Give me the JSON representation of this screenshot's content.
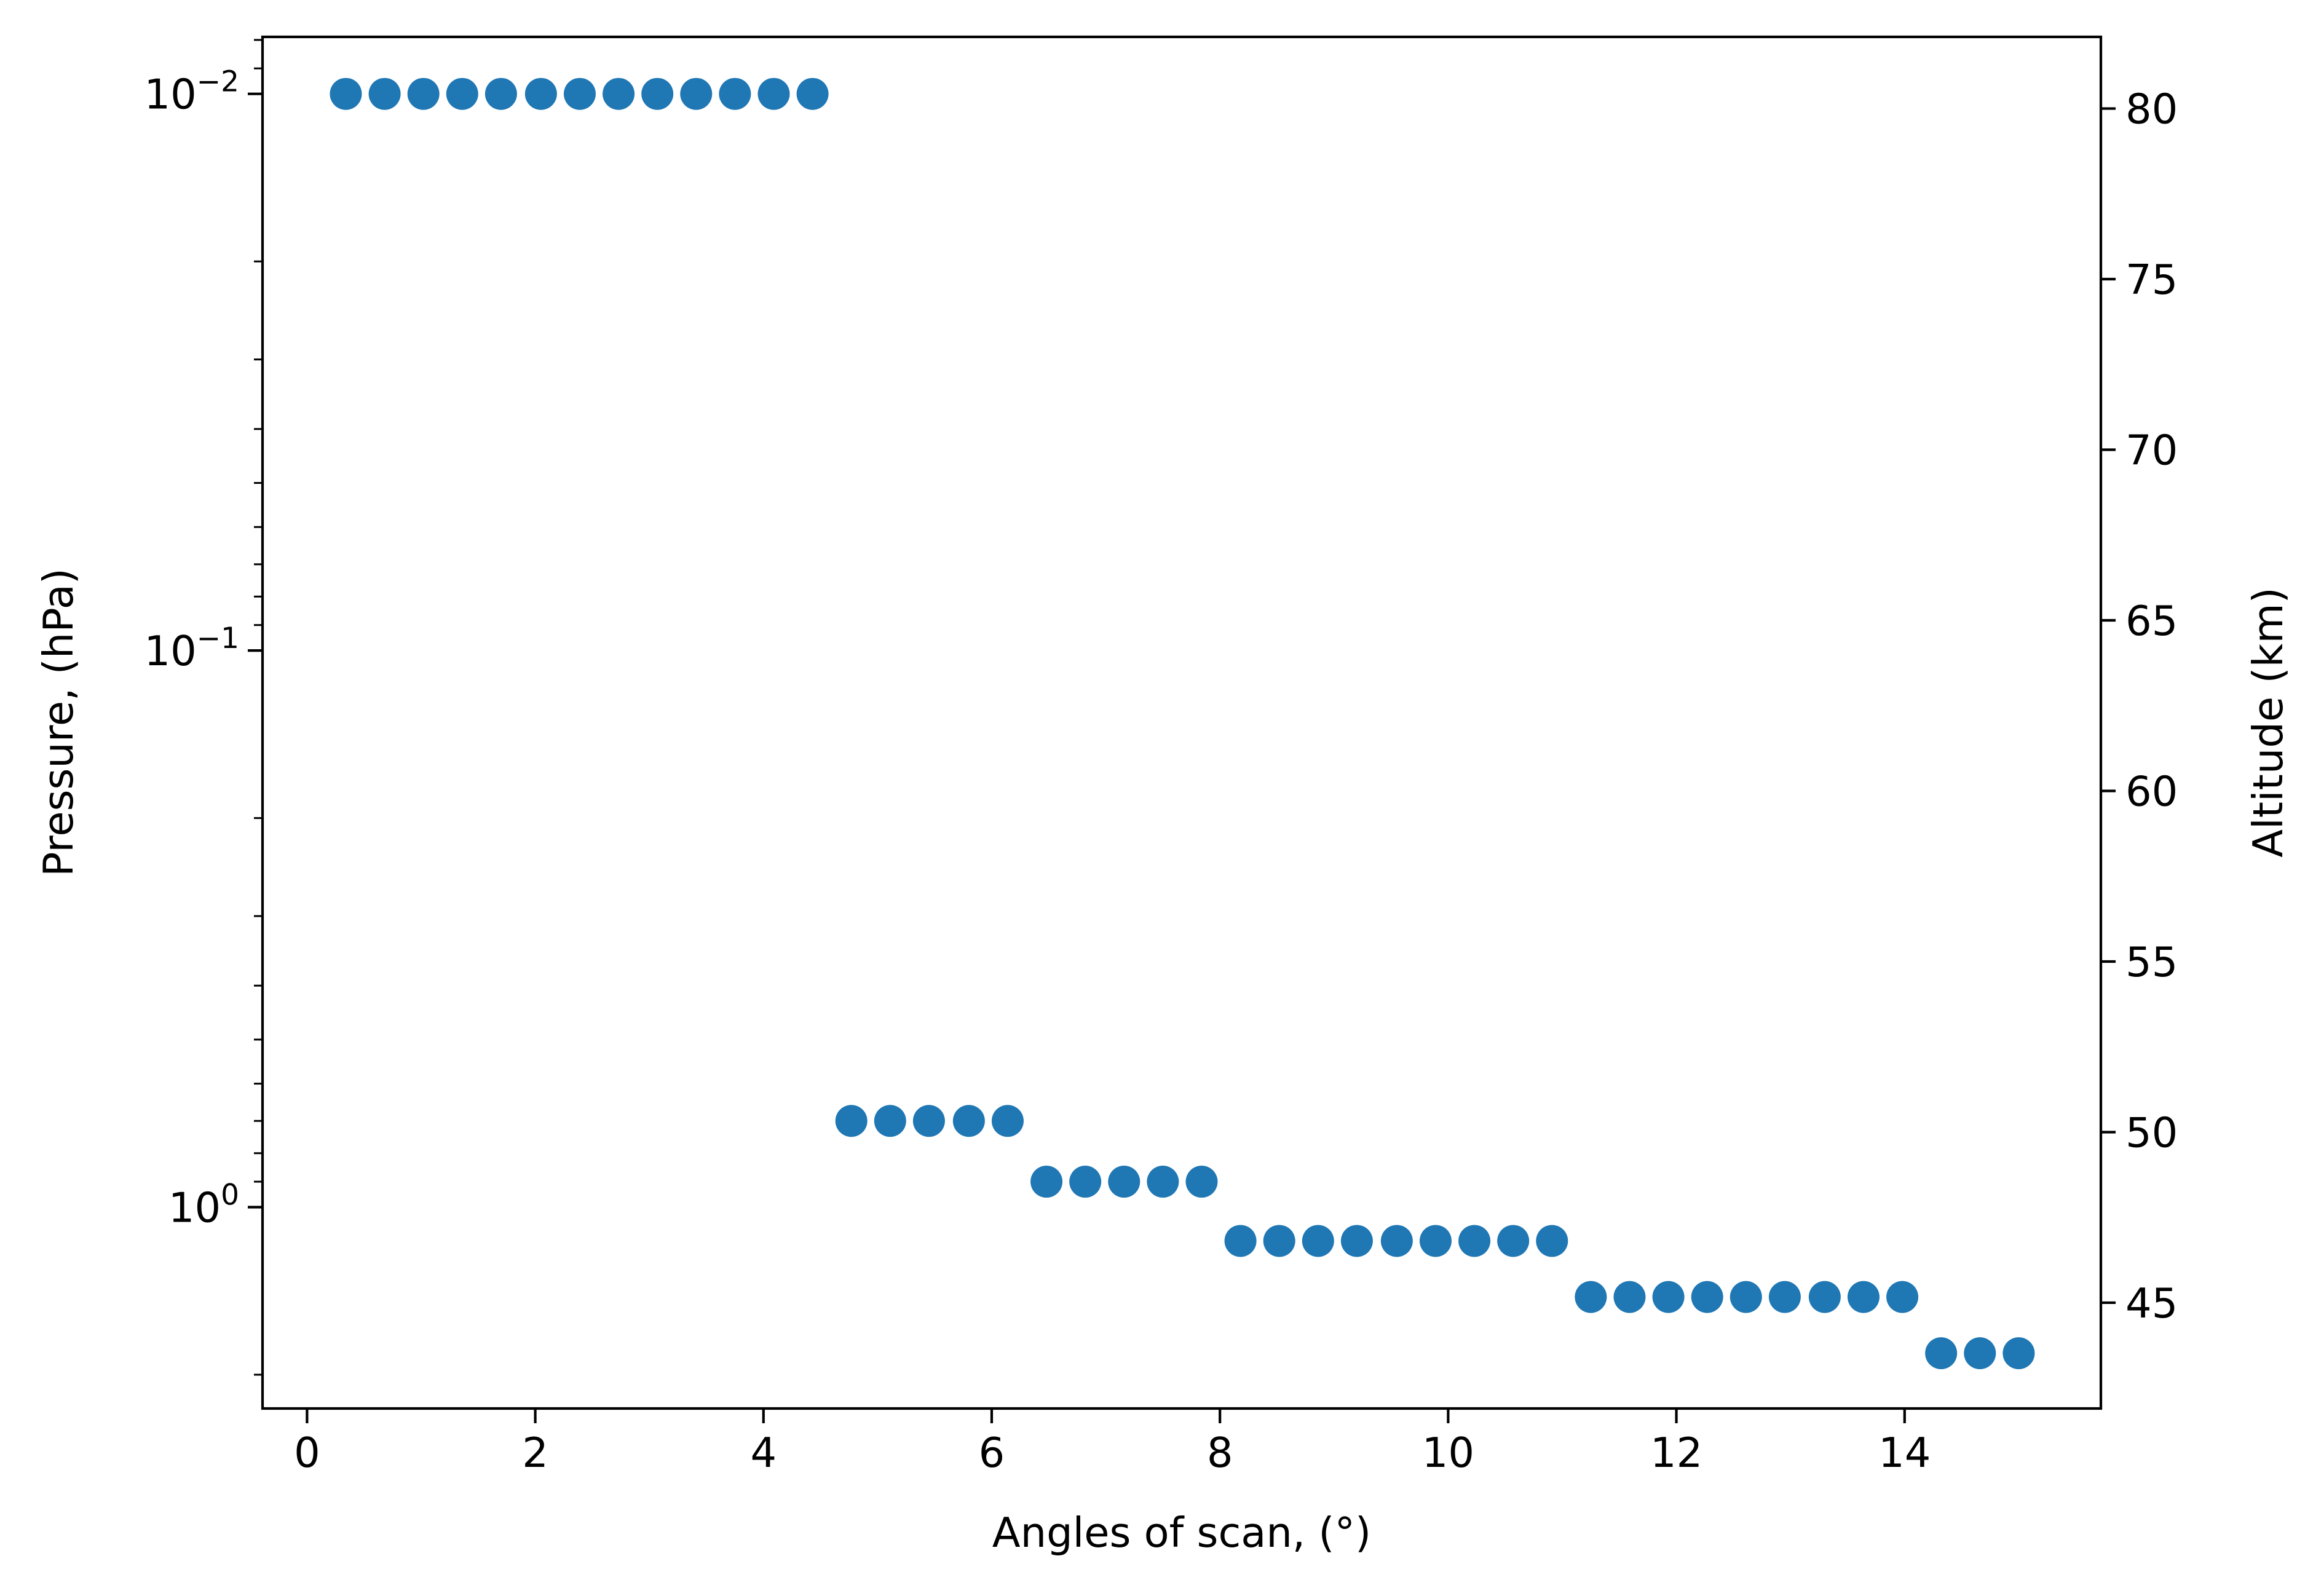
{
  "chart_data": {
    "type": "scatter",
    "title": "",
    "xlabel": "Angles of scan, (°)",
    "ylabel": "Pressure, (hPa)",
    "y2label": "Altitude (km)",
    "xlim": [
      -0.39,
      15.72
    ],
    "ylim": [
      2.3,
      0.0079
    ],
    "yscale": "log",
    "y_inverted": true,
    "y2lim": [
      41.9,
      82.1
    ],
    "xticks": [
      {
        "value": 0,
        "label": "0"
      },
      {
        "value": 2,
        "label": "2"
      },
      {
        "value": 4,
        "label": "4"
      },
      {
        "value": 6,
        "label": "6"
      },
      {
        "value": 8,
        "label": "8"
      },
      {
        "value": 10,
        "label": "10"
      },
      {
        "value": 12,
        "label": "12"
      },
      {
        "value": 14,
        "label": "14"
      }
    ],
    "yticks": [
      {
        "value": 0.01,
        "base": "10",
        "exp": "−2"
      },
      {
        "value": 0.1,
        "base": "10",
        "exp": "−1"
      },
      {
        "value": 1,
        "base": "10",
        "exp": "0"
      }
    ],
    "y2ticks": [
      {
        "value": 45,
        "label": "45"
      },
      {
        "value": 50,
        "label": "50"
      },
      {
        "value": 55,
        "label": "55"
      },
      {
        "value": 60,
        "label": "60"
      },
      {
        "value": 65,
        "label": "65"
      },
      {
        "value": 70,
        "label": "70"
      },
      {
        "value": 75,
        "label": "75"
      },
      {
        "value": 80,
        "label": "80"
      }
    ],
    "grid": false,
    "legend": "none",
    "series": [
      {
        "color": "#1f77b4",
        "points": [
          {
            "x": 0.34,
            "y": 0.01
          },
          {
            "x": 0.68,
            "y": 0.01
          },
          {
            "x": 1.02,
            "y": 0.01
          },
          {
            "x": 1.36,
            "y": 0.01
          },
          {
            "x": 1.7,
            "y": 0.01
          },
          {
            "x": 2.05,
            "y": 0.01
          },
          {
            "x": 2.39,
            "y": 0.01
          },
          {
            "x": 2.73,
            "y": 0.01
          },
          {
            "x": 3.07,
            "y": 0.01
          },
          {
            "x": 3.41,
            "y": 0.01
          },
          {
            "x": 3.75,
            "y": 0.01
          },
          {
            "x": 4.09,
            "y": 0.01
          },
          {
            "x": 4.43,
            "y": 0.01
          },
          {
            "x": 4.77,
            "y": 0.7
          },
          {
            "x": 5.11,
            "y": 0.7
          },
          {
            "x": 5.45,
            "y": 0.7
          },
          {
            "x": 5.8,
            "y": 0.7
          },
          {
            "x": 6.14,
            "y": 0.7
          },
          {
            "x": 6.48,
            "y": 0.9
          },
          {
            "x": 6.82,
            "y": 0.9
          },
          {
            "x": 7.16,
            "y": 0.9
          },
          {
            "x": 7.5,
            "y": 0.9
          },
          {
            "x": 7.84,
            "y": 0.9
          },
          {
            "x": 8.18,
            "y": 1.15
          },
          {
            "x": 8.52,
            "y": 1.15
          },
          {
            "x": 8.86,
            "y": 1.15
          },
          {
            "x": 9.2,
            "y": 1.15
          },
          {
            "x": 9.55,
            "y": 1.15
          },
          {
            "x": 9.89,
            "y": 1.15
          },
          {
            "x": 10.23,
            "y": 1.15
          },
          {
            "x": 10.57,
            "y": 1.15
          },
          {
            "x": 10.91,
            "y": 1.15
          },
          {
            "x": 11.25,
            "y": 1.45
          },
          {
            "x": 11.59,
            "y": 1.45
          },
          {
            "x": 11.93,
            "y": 1.45
          },
          {
            "x": 12.27,
            "y": 1.45
          },
          {
            "x": 12.61,
            "y": 1.45
          },
          {
            "x": 12.95,
            "y": 1.45
          },
          {
            "x": 13.3,
            "y": 1.45
          },
          {
            "x": 13.64,
            "y": 1.45
          },
          {
            "x": 13.98,
            "y": 1.45
          },
          {
            "x": 14.32,
            "y": 1.83
          },
          {
            "x": 14.66,
            "y": 1.83
          },
          {
            "x": 15.0,
            "y": 1.83
          }
        ]
      }
    ]
  }
}
